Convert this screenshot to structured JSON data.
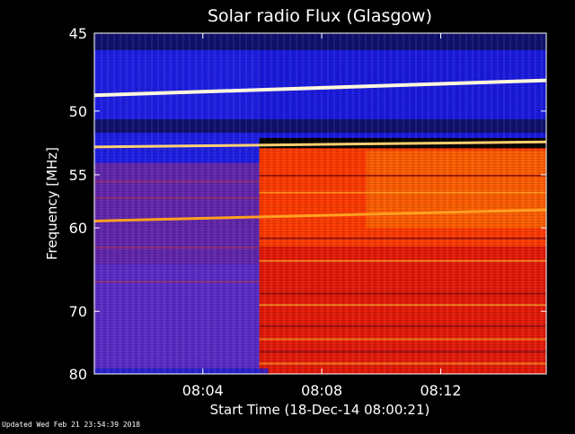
{
  "chart_data": {
    "type": "heatmap",
    "title": "Solar radio Flux (Glasgow)",
    "xlabel": "Start Time (18-Dec-14 08:00:21)",
    "ylabel": "Frequency [MHz]",
    "x_tick_labels": [
      "08:04",
      "08:08",
      "08:12"
    ],
    "x_ticks_minutes": [
      4,
      8,
      12
    ],
    "xlim_minutes": [
      0.35,
      15.55
    ],
    "y_ticks": [
      45,
      50,
      55,
      60,
      70,
      80
    ],
    "ylim": [
      45,
      80
    ],
    "y_scale": "reciprocal",
    "onset_minutes": 5.9,
    "background_colors": {
      "pre_onset_top": "#1e1ee6",
      "pre_onset_low": "#5a2cc8",
      "post_onset_upper": "#ff3a00",
      "post_onset_lower": "#e41a0a",
      "band_edge": "#10106e"
    },
    "emission_lines": [
      {
        "freq_start": 48.9,
        "freq_end": 47.9,
        "color": "#fff8dc"
      },
      {
        "freq_start": 52.7,
        "freq_end": 52.3,
        "color": "#ffd070"
      },
      {
        "freq_start": 59.3,
        "freq_end": 58.2,
        "color": "#ffa020"
      }
    ]
  },
  "footer": {
    "updated_text": "Updated Wed Feb 21 23:54:39 2018"
  }
}
